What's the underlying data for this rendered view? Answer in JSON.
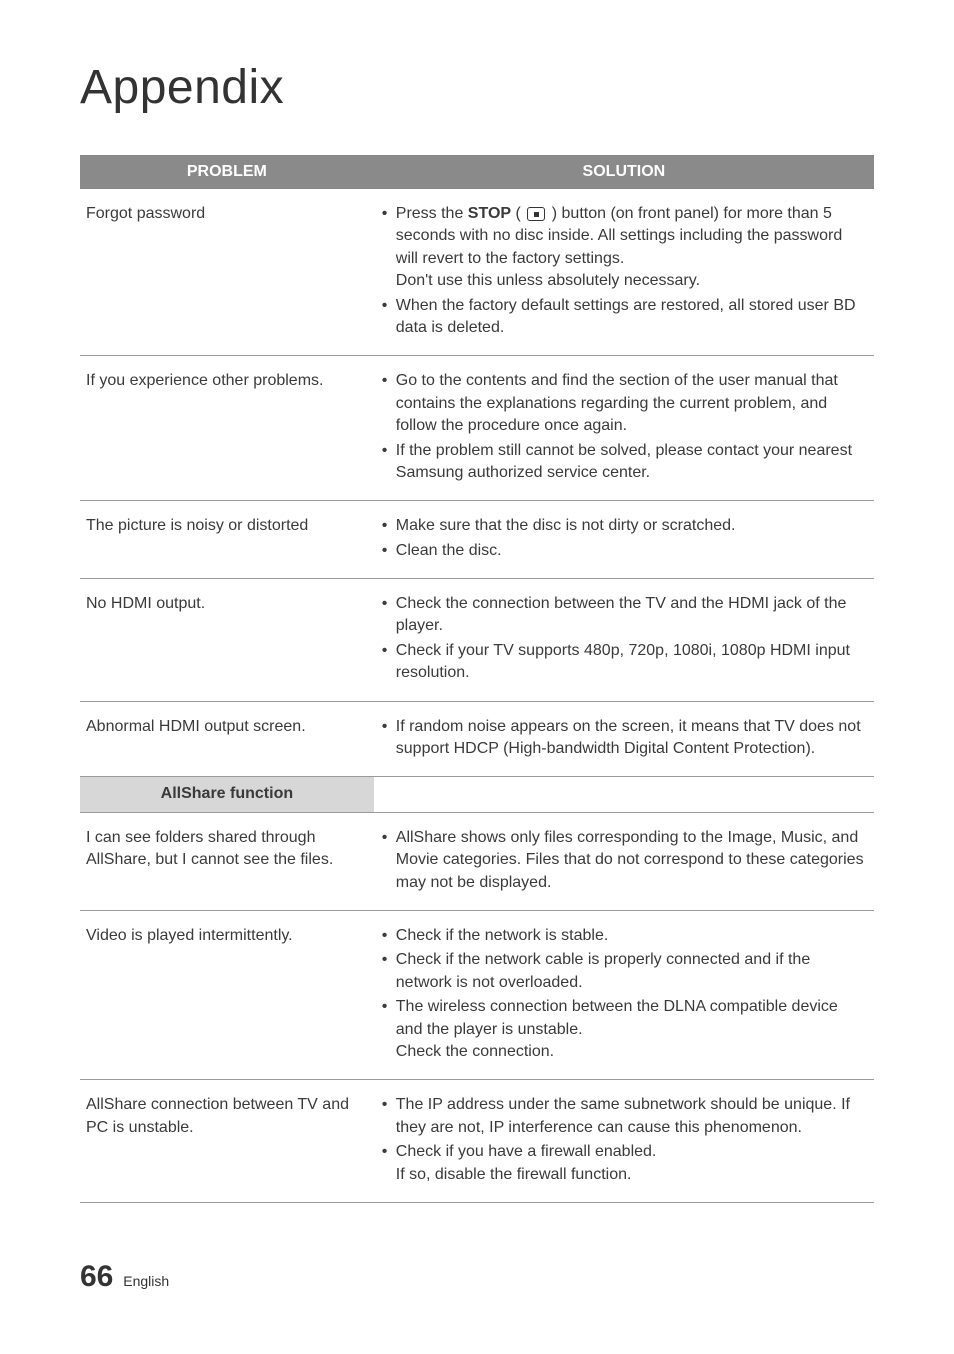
{
  "title": "Appendix",
  "headers": {
    "problem": "PROBLEM",
    "solution": "SOLUTION"
  },
  "section_label": "AllShare function",
  "rows": [
    {
      "problem": "Forgot password",
      "bullets": [
        {
          "pre": "Press the ",
          "bold": "STOP",
          "icon": true,
          "post": " button (on front panel) for more than 5 seconds with no disc inside. All settings including the password will revert to the factory settings.",
          "tail": "Don't use this unless absolutely necessary."
        },
        {
          "text": "When the factory default settings are restored, all stored user BD data is deleted."
        }
      ]
    },
    {
      "problem": "If you experience other problems.",
      "bullets": [
        {
          "text": "Go to the contents and find the section of the user manual that contains the explanations regarding the current problem, and follow the procedure once again."
        },
        {
          "text": "If the problem still cannot be solved, please contact your nearest Samsung authorized service center."
        }
      ]
    },
    {
      "problem": "The picture is noisy or distorted",
      "bullets": [
        {
          "text": "Make sure that the disc is not dirty or scratched."
        },
        {
          "text": "Clean the disc."
        }
      ]
    },
    {
      "problem": "No HDMI output.",
      "bullets": [
        {
          "text": "Check the connection between the TV and the HDMI jack of the player."
        },
        {
          "text": "Check if your TV supports 480p, 720p, 1080i, 1080p HDMI input resolution."
        }
      ]
    },
    {
      "problem": "Abnormal HDMI output screen.",
      "bullets": [
        {
          "text": "If random noise appears on the screen, it means that TV does not support HDCP (High-bandwidth Digital Content Protection)."
        }
      ]
    }
  ],
  "rows2": [
    {
      "problem": "I can see folders shared through AllShare, but I cannot see the files.",
      "bullets": [
        {
          "text": "AllShare shows only files corresponding to the Image, Music, and Movie categories. Files that do not correspond to these categories may not be displayed."
        }
      ]
    },
    {
      "problem": "Video is played intermittently.",
      "bullets": [
        {
          "text": "Check if the network is stable."
        },
        {
          "text": "Check if the network cable is properly connected and if the network is not overloaded."
        },
        {
          "text": "The wireless connection between the DLNA compatible device and the player is unstable.",
          "tail": "Check the connection."
        }
      ]
    },
    {
      "problem": "AllShare connection between TV and PC is unstable.",
      "bullets": [
        {
          "text": "The IP address under the same subnetwork should be unique. If they are not, IP interference can cause this phenomenon."
        },
        {
          "text": "Check if you have a firewall enabled.",
          "tail": "If so, disable the firewall function."
        }
      ]
    }
  ],
  "footer": {
    "page": "66",
    "lang": "English"
  }
}
